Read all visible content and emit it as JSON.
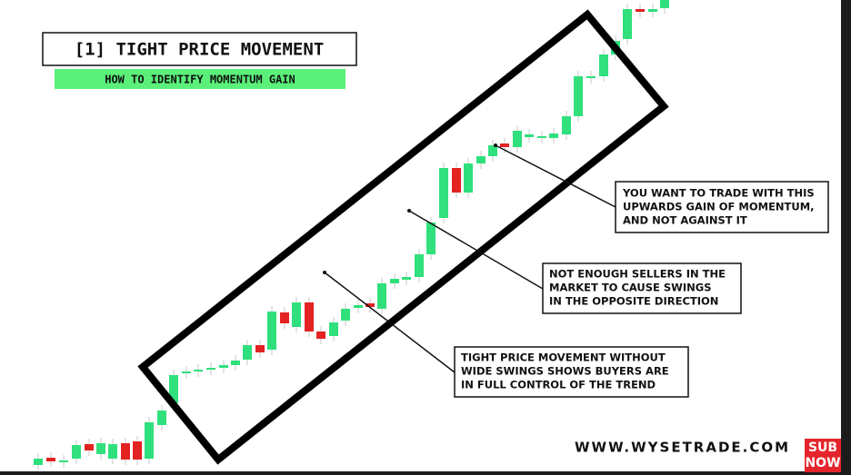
{
  "header": {
    "title": "[1] TIGHT PRICE MOVEMENT",
    "subtitle": "HOW TO IDENTIFY MOMENTUM GAIN"
  },
  "annotations": [
    {
      "lines": [
        "YOU WANT TO TRADE WITH THIS",
        "UPWARDS GAIN OF MOMENTUM,",
        "AND NOT AGAINST IT"
      ]
    },
    {
      "lines": [
        "NOT ENOUGH SELLERS IN THE",
        "MARKET TO CAUSE SWINGS",
        "IN THE OPPOSITE DIRECTION"
      ]
    },
    {
      "lines": [
        "TIGHT PRICE MOVEMENT WITHOUT",
        "WIDE SWINGS SHOWS BUYERS ARE",
        "IN FULL CONTROL OF THE TREND"
      ]
    }
  ],
  "footer": {
    "website": "WWW.WYSETRADE.COM",
    "badge": [
      "SUB",
      "NOW"
    ]
  }
}
